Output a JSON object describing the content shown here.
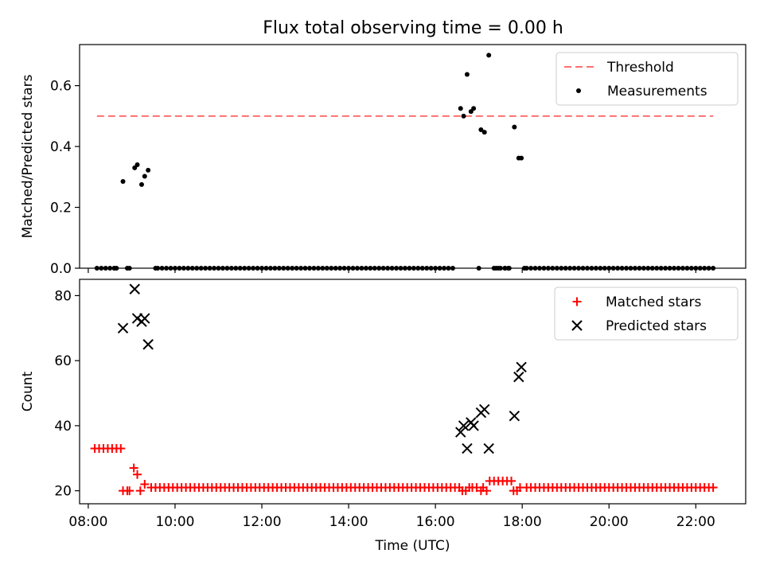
{
  "figure": {
    "title": "Flux total observing time = 0.00 h"
  },
  "chart_data": [
    {
      "type": "scatter",
      "ylabel": "Matched/Predicted stars",
      "xlabel": "",
      "xlim": [
        7.8,
        23.15
      ],
      "ylim": [
        0.0,
        0.735
      ],
      "yticks": [
        0.0,
        0.2,
        0.4,
        0.6
      ],
      "ytick_labels": [
        "0.0",
        "0.2",
        "0.4",
        "0.6"
      ],
      "legend_position": "top-right",
      "series": [
        {
          "name": "Threshold",
          "kind": "dashed-line",
          "color": "#ff7070",
          "x": [
            8.2,
            22.4
          ],
          "y": [
            0.5,
            0.5
          ]
        },
        {
          "name": "Measurements",
          "kind": "points",
          "color": "#000000",
          "zero_run": {
            "start": 8.2,
            "end": 22.45,
            "step": 0.1,
            "exclude": [
              [
                8.7,
                8.9
              ],
              [
                9.0,
                9.5
              ],
              [
                16.5,
                17.35
              ],
              [
                17.75,
                18.0
              ]
            ]
          },
          "points": [
            [
              8.8,
              0.285
            ],
            [
              9.07,
              0.33
            ],
            [
              9.13,
              0.34
            ],
            [
              9.23,
              0.275
            ],
            [
              9.3,
              0.302
            ],
            [
              9.38,
              0.322
            ],
            [
              8.6,
              0.0
            ],
            [
              8.65,
              0.0
            ],
            [
              8.9,
              0.0
            ],
            [
              8.95,
              0.0
            ],
            [
              9.55,
              0.0
            ],
            [
              16.58,
              0.525
            ],
            [
              16.65,
              0.5
            ],
            [
              16.73,
              0.637
            ],
            [
              16.82,
              0.515
            ],
            [
              16.88,
              0.525
            ],
            [
              17.05,
              0.455
            ],
            [
              17.13,
              0.447
            ],
            [
              17.23,
              0.7
            ],
            [
              17.0,
              0.0
            ],
            [
              17.35,
              0.0
            ],
            [
              17.82,
              0.464
            ],
            [
              17.92,
              0.362
            ],
            [
              17.98,
              0.362
            ],
            [
              17.45,
              0.0
            ],
            [
              17.6,
              0.0
            ],
            [
              17.68,
              0.0
            ],
            [
              18.05,
              0.0
            ]
          ]
        }
      ]
    },
    {
      "type": "scatter",
      "ylabel": "Count",
      "xlabel": "Time (UTC)",
      "xlim": [
        7.8,
        23.15
      ],
      "ylim": [
        16.0,
        85.0
      ],
      "yticks": [
        20,
        40,
        60,
        80
      ],
      "ytick_labels": [
        "20",
        "40",
        "60",
        "80"
      ],
      "xticks": [
        8,
        10,
        12,
        14,
        16,
        18,
        20,
        22
      ],
      "xtick_labels": [
        "08:00",
        "10:00",
        "12:00",
        "14:00",
        "16:00",
        "18:00",
        "20:00",
        "22:00"
      ],
      "legend_position": "top-right",
      "series": [
        {
          "name": "Matched stars",
          "kind": "plus",
          "color": "#ff0000",
          "runs": [
            {
              "start": 8.15,
              "end": 8.75,
              "step": 0.1,
              "y": 33
            },
            {
              "start": 9.45,
              "end": 16.45,
              "step": 0.1,
              "y": 21
            },
            {
              "start": 18.1,
              "end": 22.45,
              "step": 0.1,
              "y": 21
            },
            {
              "start": 17.25,
              "end": 17.75,
              "step": 0.1,
              "y": 23
            }
          ],
          "points": [
            [
              8.8,
              20
            ],
            [
              8.9,
              20
            ],
            [
              8.95,
              20
            ],
            [
              9.05,
              27
            ],
            [
              9.13,
              25
            ],
            [
              9.2,
              20
            ],
            [
              9.3,
              22
            ],
            [
              16.55,
              21
            ],
            [
              16.62,
              20
            ],
            [
              16.7,
              20
            ],
            [
              16.78,
              21
            ],
            [
              16.85,
              21
            ],
            [
              16.95,
              21
            ],
            [
              17.05,
              20
            ],
            [
              17.1,
              21
            ],
            [
              17.18,
              20
            ],
            [
              17.8,
              20
            ],
            [
              17.88,
              20
            ],
            [
              17.95,
              21
            ]
          ]
        },
        {
          "name": "Predicted stars",
          "kind": "x",
          "color": "#000000",
          "points": [
            [
              8.8,
              70
            ],
            [
              9.07,
              82
            ],
            [
              9.13,
              73
            ],
            [
              9.23,
              72
            ],
            [
              9.3,
              73
            ],
            [
              9.38,
              65
            ],
            [
              16.58,
              38
            ],
            [
              16.65,
              40
            ],
            [
              16.73,
              33
            ],
            [
              16.82,
              41
            ],
            [
              16.88,
              40
            ],
            [
              17.05,
              44
            ],
            [
              17.13,
              45
            ],
            [
              17.23,
              33
            ],
            [
              17.82,
              43
            ],
            [
              17.92,
              55
            ],
            [
              17.98,
              58
            ]
          ]
        }
      ]
    }
  ]
}
